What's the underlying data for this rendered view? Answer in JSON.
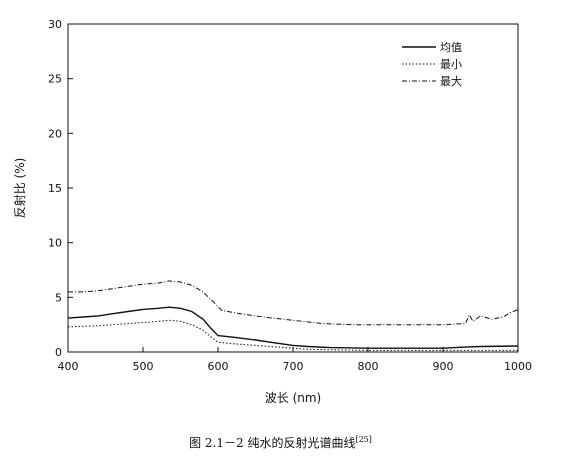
{
  "chart_data": {
    "type": "line",
    "xlabel": "波长 (nm)",
    "ylabel": "反射比 (%)",
    "xlim": [
      400,
      1000
    ],
    "ylim": [
      0,
      30
    ],
    "xticks": [
      400,
      500,
      600,
      700,
      800,
      900,
      1000
    ],
    "yticks": [
      0,
      5,
      10,
      15,
      20,
      25,
      30
    ],
    "grid": false,
    "legend_position": "top-right",
    "series": [
      {
        "name": "均值",
        "style": "solid",
        "x": [
          400,
          420,
          440,
          460,
          480,
          500,
          520,
          535,
          550,
          565,
          580,
          590,
          600,
          620,
          650,
          680,
          700,
          720,
          750,
          800,
          850,
          900,
          930,
          950,
          1000
        ],
        "y": [
          3.1,
          3.2,
          3.3,
          3.5,
          3.7,
          3.9,
          4.0,
          4.1,
          4.0,
          3.7,
          3.0,
          2.2,
          1.5,
          1.35,
          1.1,
          0.8,
          0.6,
          0.5,
          0.4,
          0.35,
          0.35,
          0.35,
          0.45,
          0.5,
          0.55
        ]
      },
      {
        "name": "最小",
        "style": "dotted",
        "x": [
          400,
          420,
          440,
          460,
          480,
          500,
          520,
          535,
          550,
          565,
          580,
          590,
          600,
          620,
          650,
          680,
          700,
          720,
          750,
          800,
          850,
          900,
          950,
          1000
        ],
        "y": [
          2.3,
          2.35,
          2.4,
          2.5,
          2.6,
          2.7,
          2.8,
          2.9,
          2.8,
          2.5,
          2.0,
          1.4,
          0.9,
          0.75,
          0.6,
          0.45,
          0.35,
          0.25,
          0.2,
          0.15,
          0.15,
          0.15,
          0.15,
          0.15
        ]
      },
      {
        "name": "最大",
        "style": "dashdot",
        "x": [
          400,
          420,
          440,
          460,
          480,
          500,
          520,
          535,
          550,
          565,
          580,
          595,
          605,
          630,
          660,
          700,
          740,
          780,
          820,
          860,
          900,
          930,
          935,
          940,
          950,
          965,
          980,
          990,
          1000
        ],
        "y": [
          5.5,
          5.5,
          5.6,
          5.8,
          6.0,
          6.2,
          6.3,
          6.5,
          6.4,
          6.1,
          5.5,
          4.5,
          3.8,
          3.5,
          3.2,
          2.9,
          2.6,
          2.5,
          2.5,
          2.5,
          2.5,
          2.6,
          3.4,
          2.8,
          3.3,
          3.0,
          3.2,
          3.6,
          3.9
        ]
      }
    ]
  },
  "caption": {
    "text": "图 2.1－2 纯水的反射光谱曲线",
    "ref": "[25]"
  }
}
